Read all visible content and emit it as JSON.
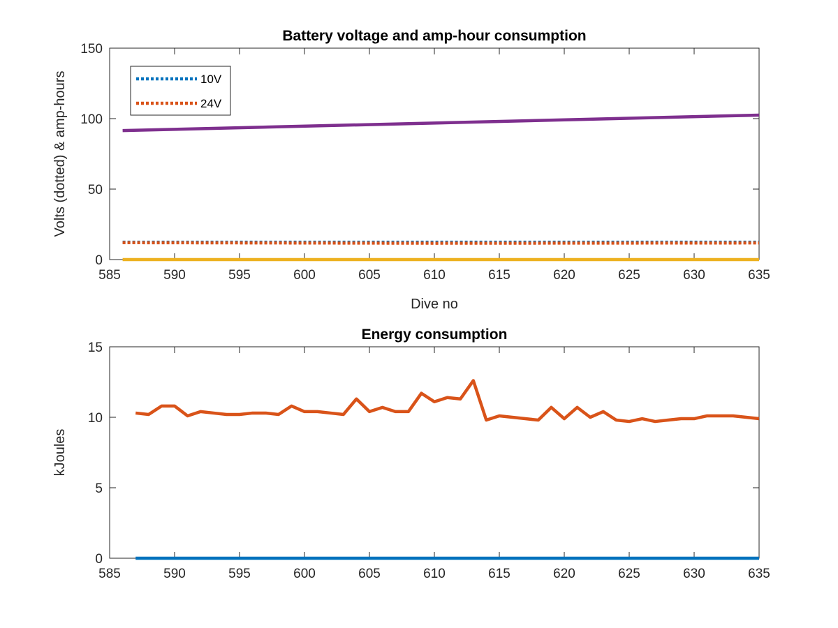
{
  "chart_data": [
    {
      "type": "line",
      "title": "Battery voltage and amp-hour consumption",
      "xlabel": "Dive no",
      "ylabel": "Volts (dotted) & amp-hours",
      "xlim": [
        585,
        635
      ],
      "ylim": [
        0,
        150
      ],
      "xticks": [
        585,
        590,
        595,
        600,
        605,
        610,
        615,
        620,
        625,
        630,
        635
      ],
      "yticks": [
        0,
        50,
        100,
        150
      ],
      "legend": {
        "position": "top-left",
        "entries": [
          "10V",
          "24V"
        ]
      },
      "series": [
        {
          "name": "10V",
          "color": "#0072BD",
          "style": "dotted",
          "x": [
            586,
            635
          ],
          "y": [
            12.3,
            12.3
          ]
        },
        {
          "name": "24V",
          "color": "#D95319",
          "style": "dotted",
          "x": [
            586,
            610,
            635
          ],
          "y": [
            12.0,
            11.6,
            11.8
          ]
        },
        {
          "color": "#7E2F8E",
          "style": "solid",
          "x": [
            586,
            635
          ],
          "y": [
            91.5,
            102.5
          ]
        },
        {
          "color": "#EDB120",
          "style": "solid",
          "x": [
            586,
            635
          ],
          "y": [
            0,
            0
          ]
        }
      ]
    },
    {
      "type": "line",
      "title": "Energy consumption",
      "xlabel": "",
      "ylabel": "kJoules",
      "xlim": [
        585,
        635
      ],
      "ylim": [
        0,
        15
      ],
      "xticks": [
        585,
        590,
        595,
        600,
        605,
        610,
        615,
        620,
        625,
        630,
        635
      ],
      "yticks": [
        0,
        5,
        10,
        15
      ],
      "series": [
        {
          "color": "#D95319",
          "style": "solid",
          "x": [
            587,
            588,
            589,
            590,
            591,
            592,
            593,
            594,
            595,
            596,
            597,
            598,
            599,
            600,
            601,
            602,
            603,
            604,
            605,
            606,
            607,
            608,
            609,
            610,
            611,
            612,
            613,
            614,
            615,
            616,
            617,
            618,
            619,
            620,
            621,
            622,
            623,
            624,
            625,
            626,
            627,
            628,
            629,
            630,
            631,
            632,
            633,
            634,
            635
          ],
          "y": [
            10.3,
            10.2,
            10.8,
            10.8,
            10.1,
            10.4,
            10.3,
            10.2,
            10.2,
            10.3,
            10.3,
            10.2,
            10.8,
            10.4,
            10.4,
            10.3,
            10.2,
            11.3,
            10.4,
            10.7,
            10.4,
            10.4,
            11.7,
            11.1,
            11.4,
            11.3,
            12.6,
            9.8,
            10.1,
            10.0,
            9.9,
            9.8,
            10.7,
            9.9,
            10.7,
            10.0,
            10.4,
            9.8,
            9.7,
            9.9,
            9.7,
            9.8,
            9.9,
            9.9,
            10.1,
            10.1,
            10.1,
            10.0,
            9.9
          ]
        },
        {
          "color": "#0072BD",
          "style": "solid",
          "x": [
            587,
            635
          ],
          "y": [
            0,
            0
          ]
        }
      ]
    }
  ]
}
